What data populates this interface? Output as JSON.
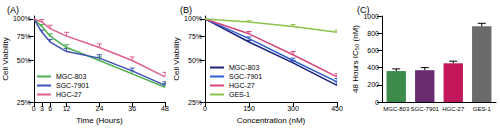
{
  "chart_data": [
    {
      "type": "line",
      "title": "(A)",
      "x_label": "Time (Hours)",
      "y_label": "Cell Viability",
      "x": [
        0,
        3,
        6,
        12,
        24,
        36,
        48
      ],
      "series": [
        {
          "name": "MGC-803",
          "color": "#4caf50",
          "values": [
            100,
            88,
            75,
            62,
            50,
            40,
            32
          ],
          "errors": [
            0,
            3,
            3,
            3,
            3,
            2,
            2
          ]
        },
        {
          "name": "SGC-7901",
          "color": "#3f51b5",
          "values": [
            100,
            80,
            68,
            58,
            52,
            42,
            33
          ],
          "errors": [
            0,
            3,
            3,
            3,
            3,
            2,
            2
          ]
        },
        {
          "name": "HGC-27",
          "color": "#e0608a",
          "values": [
            100,
            95,
            85,
            75,
            62,
            50,
            38
          ],
          "errors": [
            0,
            4,
            5,
            5,
            4,
            3,
            3
          ]
        }
      ],
      "xlim": [
        0,
        48
      ],
      "xticks": [
        0,
        3,
        6,
        12,
        24,
        36,
        48
      ],
      "ylim": [
        25,
        105
      ],
      "yticks": [
        {
          "value": 25,
          "label": "25%"
        },
        {
          "value": 50,
          "label": "50%"
        },
        {
          "value": 75,
          "label": "75%"
        },
        {
          "value": 100,
          "label": "100%"
        }
      ],
      "log": "y",
      "grid": false,
      "legend": "lower left"
    },
    {
      "type": "line",
      "title": "(B)",
      "x_label": "Concentration (nM)",
      "y_label": "Cell Viability",
      "x": [
        0,
        150,
        300,
        450
      ],
      "series": [
        {
          "name": "MGC-803",
          "color": "#1a237e",
          "values": [
            100,
            68,
            48,
            33
          ],
          "errors": [
            0,
            2,
            2,
            2
          ]
        },
        {
          "name": "SGC-7901",
          "color": "#2f5fd0",
          "values": [
            100,
            72,
            50,
            35
          ],
          "errors": [
            0,
            2,
            2,
            2
          ]
        },
        {
          "name": "HGC-27",
          "color": "#d6457e",
          "values": [
            100,
            78,
            55,
            38
          ],
          "errors": [
            0,
            3,
            3,
            2
          ]
        },
        {
          "name": "GES-1",
          "color": "#8bc34a",
          "values": [
            100,
            95,
            88,
            80
          ],
          "errors": [
            0,
            2,
            3,
            3
          ]
        }
      ],
      "xlim": [
        0,
        450
      ],
      "xticks": [
        0,
        150,
        300,
        450
      ],
      "ylim": [
        25,
        105
      ],
      "yticks": [
        {
          "value": 25,
          "label": "25%"
        },
        {
          "value": 50,
          "label": "50%"
        },
        {
          "value": 75,
          "label": "75%"
        },
        {
          "value": 100,
          "label": "100%"
        }
      ],
      "log": "y",
      "grid": false,
      "legend": "lower left"
    },
    {
      "type": "bar",
      "title": "(C)",
      "y_label": "48 Hours IC₅₀ (nM)",
      "categories": [
        "MGC-803",
        "SGC-7901",
        "HGC-27",
        "GES-1"
      ],
      "values": [
        360,
        370,
        450,
        880
      ],
      "errors": [
        25,
        30,
        25,
        35
      ],
      "colors": [
        "#3d8a4a",
        "#6a2c70",
        "#c2185b",
        "#6b6b6b"
      ],
      "ylim": [
        0,
        1000
      ],
      "yticks": [
        0,
        200,
        400,
        600,
        800,
        1000
      ],
      "grid": false
    }
  ]
}
